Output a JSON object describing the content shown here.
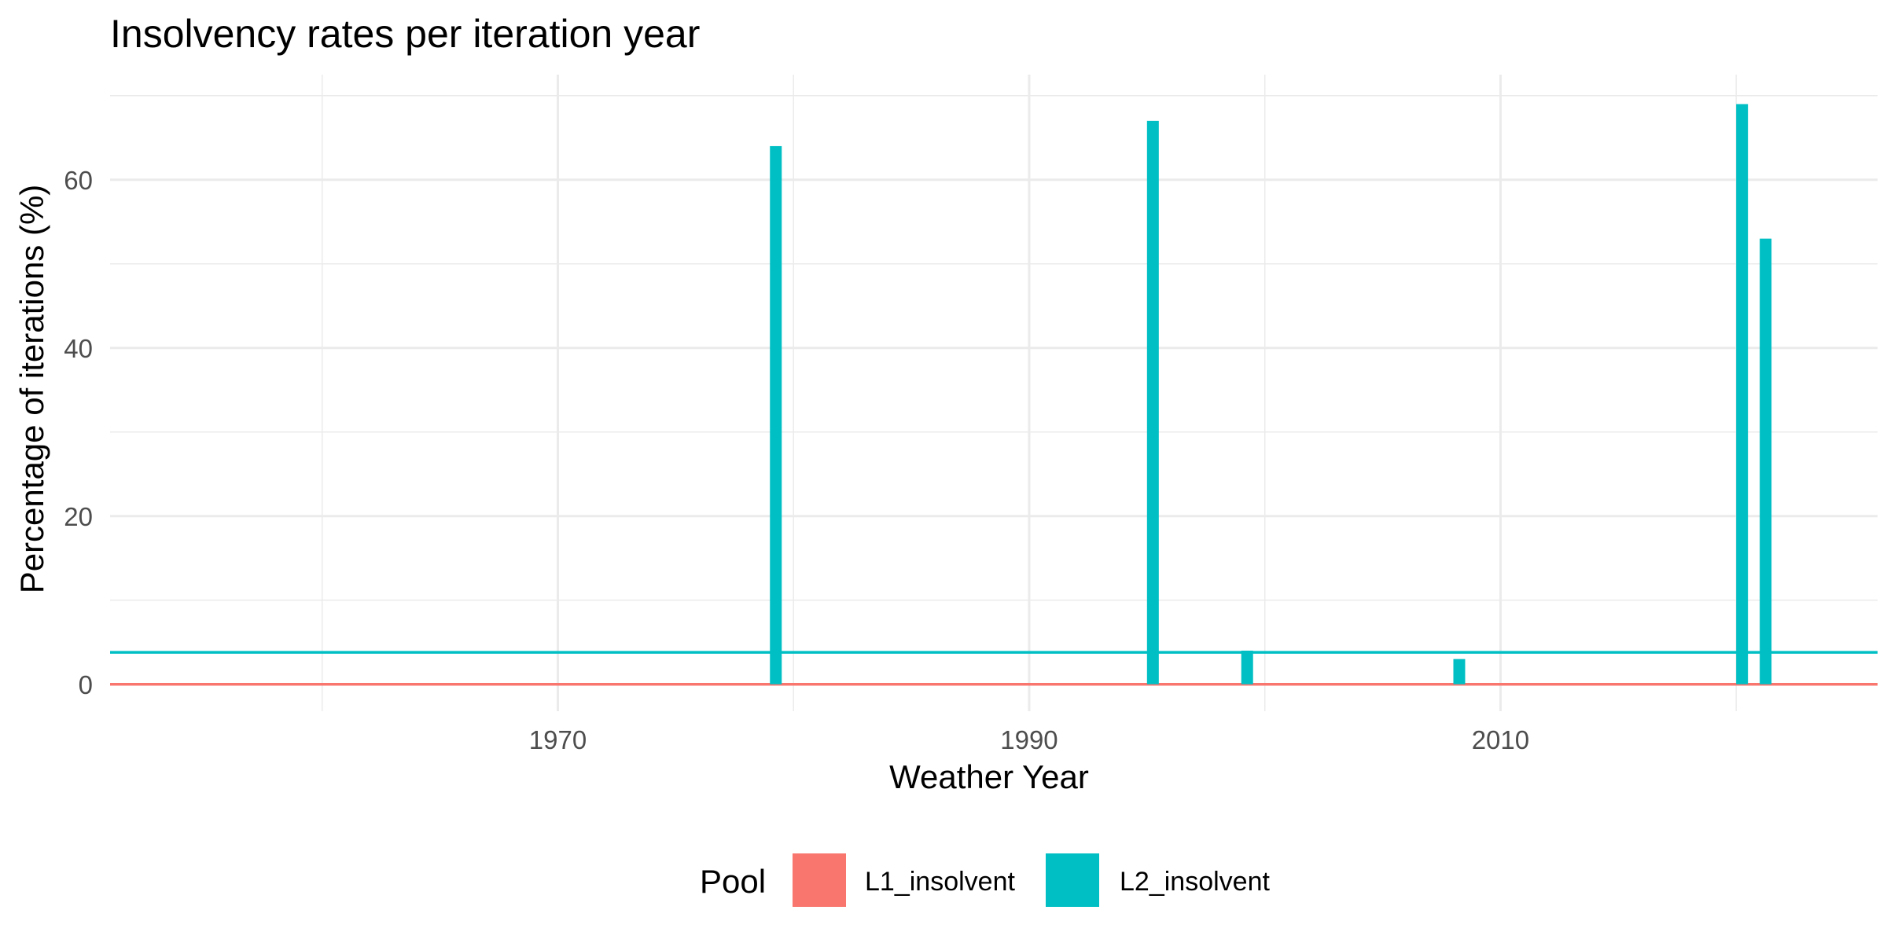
{
  "chart_data": {
    "type": "bar",
    "title": "Insolvency rates per iteration year",
    "xlabel": "Weather Year",
    "ylabel": "Percentage of iterations (%)",
    "xlim": [
      1951,
      2026
    ],
    "ylim": [
      -3.2,
      72.5
    ],
    "x_ticks": [
      1970,
      1990,
      2010
    ],
    "y_ticks": [
      0,
      20,
      40,
      60
    ],
    "grid": true,
    "legend": {
      "title": "Pool",
      "position": "bottom"
    },
    "series": [
      {
        "name": "L1_insolvent",
        "color": "#F8766D",
        "x": [
          1979,
          1995,
          1999,
          2008,
          2020,
          2021
        ],
        "values": [
          0,
          0,
          0,
          0,
          0,
          0
        ],
        "mean": 0
      },
      {
        "name": "L2_insolvent",
        "color": "#00BFC4",
        "x": [
          1979,
          1995,
          1999,
          2008,
          2020,
          2021
        ],
        "values": [
          64,
          67,
          4,
          3,
          69,
          53
        ],
        "mean": 3.8
      }
    ]
  }
}
